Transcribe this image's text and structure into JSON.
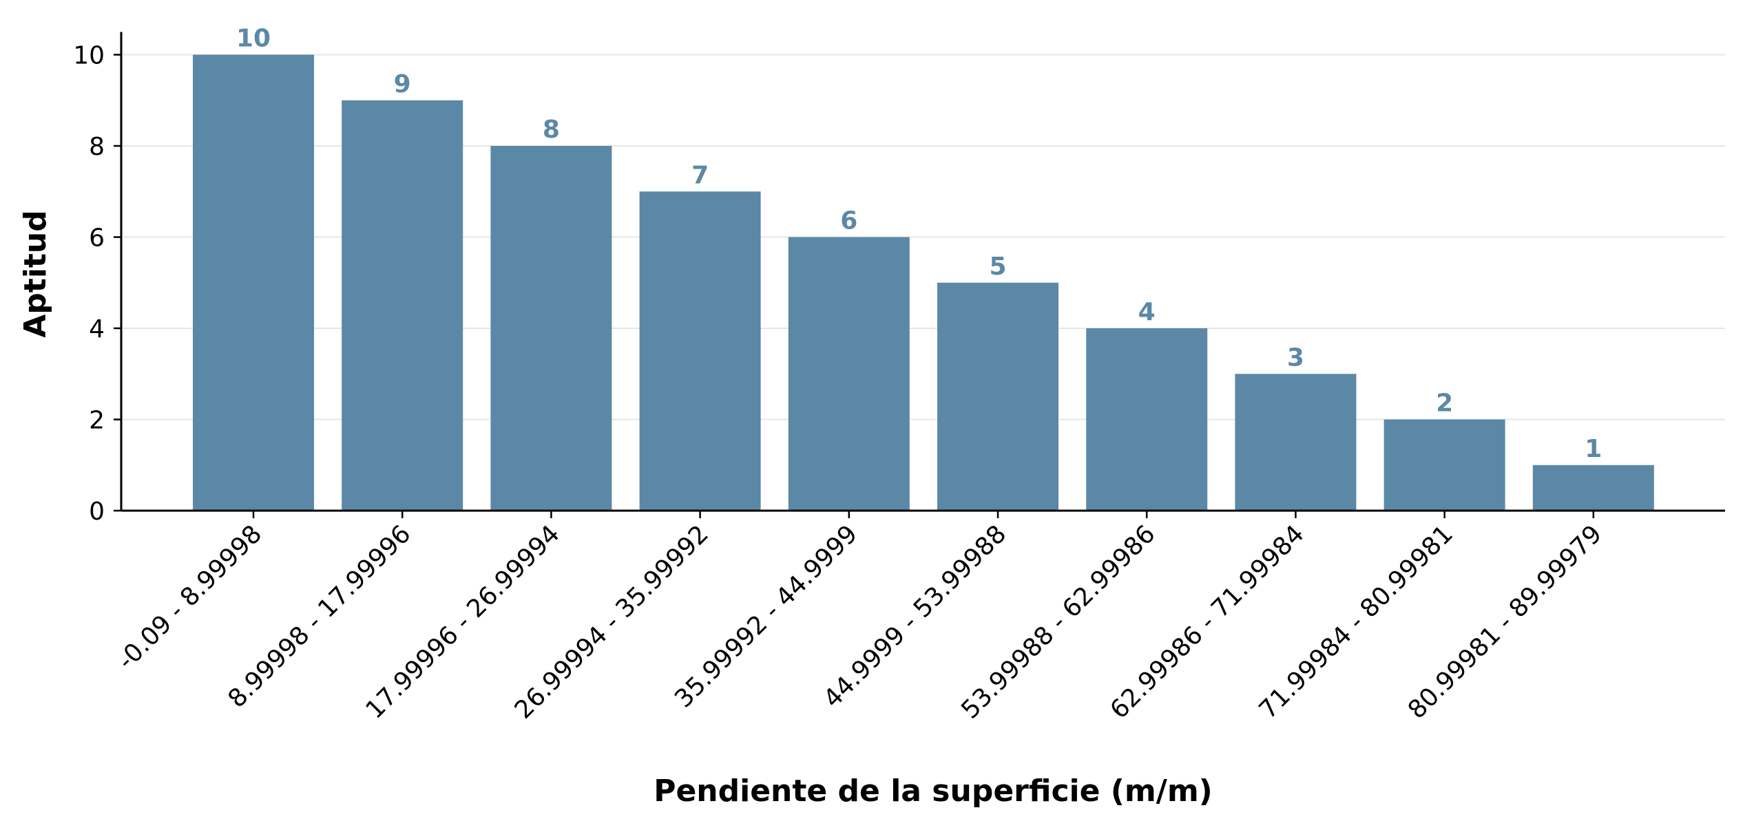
{
  "chart_data": {
    "type": "bar",
    "categories": [
      "-0.09 - 8.99998",
      "8.99998 - 17.99996",
      "17.99996 - 26.99994",
      "26.99994 - 35.99992",
      "35.99992 - 44.9999",
      "44.9999 - 53.99988",
      "53.99988 - 62.99986",
      "62.99986 - 71.99984",
      "71.99984 - 80.99981",
      "80.99981 - 89.99979"
    ],
    "values": [
      10,
      9,
      8,
      7,
      6,
      5,
      4,
      3,
      2,
      1
    ],
    "data_labels": [
      "10",
      "9",
      "8",
      "7",
      "6",
      "5",
      "4",
      "3",
      "2",
      "1"
    ],
    "title": "",
    "xlabel": "Pendiente de la superficie (m/m)",
    "ylabel": "Aptitud",
    "ylim": [
      0,
      10.5
    ],
    "yticks": [
      0,
      2,
      4,
      6,
      8,
      10
    ],
    "ytick_labels": [
      "0",
      "2",
      "4",
      "6",
      "8",
      "10"
    ],
    "grid": "horizontal",
    "bar_color": "#5b88a6",
    "label_color": "#5b88a6"
  }
}
